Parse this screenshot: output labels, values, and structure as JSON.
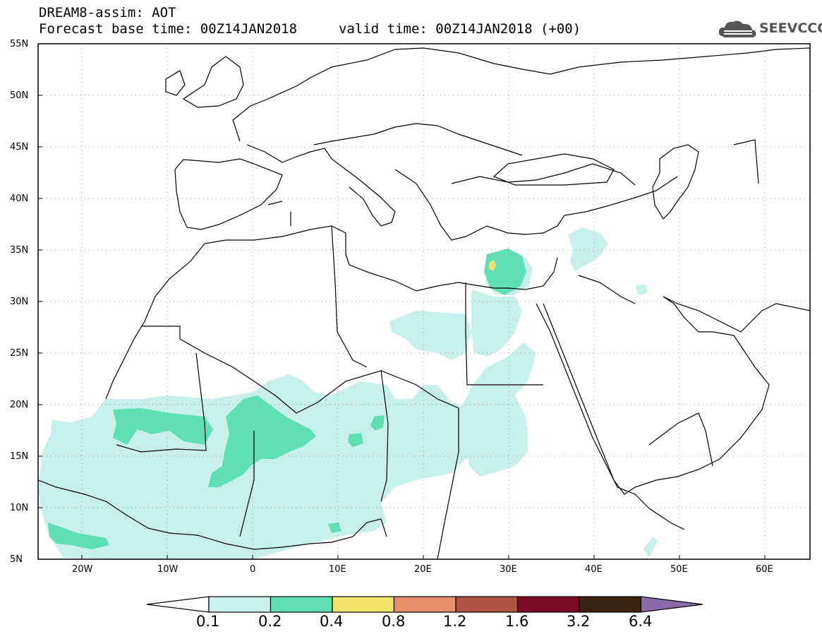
{
  "header": {
    "line1": "DREAM8-assim: AOT",
    "line2": "Forecast base time: 00Z14JAN2018",
    "valid": "valid time: 00Z14JAN2018 (+00)"
  },
  "logo": {
    "text": "SEEVCCC",
    "icon": "cloud-icon"
  },
  "axes": {
    "lat_labels": [
      "55N",
      "50N",
      "45N",
      "40N",
      "35N",
      "30N",
      "25N",
      "20N",
      "15N",
      "10N",
      "5N"
    ],
    "lon_labels": [
      "20W",
      "10W",
      "0",
      "10E",
      "20E",
      "30E",
      "40E",
      "50E",
      "60E"
    ]
  },
  "legend": {
    "values": [
      "0.1",
      "0.2",
      "0.4",
      "0.8",
      "1.2",
      "1.6",
      "3.2",
      "6.4"
    ],
    "colors": [
      "#ffffff",
      "#c8f0ea",
      "#5ee0b4",
      "#f2e268",
      "#e8906a",
      "#b05242",
      "#7a0a28",
      "#3c2414",
      "#8a6aa8"
    ]
  },
  "colors": {
    "aot_0_1": "#c8f0ea",
    "aot_0_2": "#5ee0b4",
    "aot_0_4": "#f2e268",
    "grid": "#999999"
  }
}
